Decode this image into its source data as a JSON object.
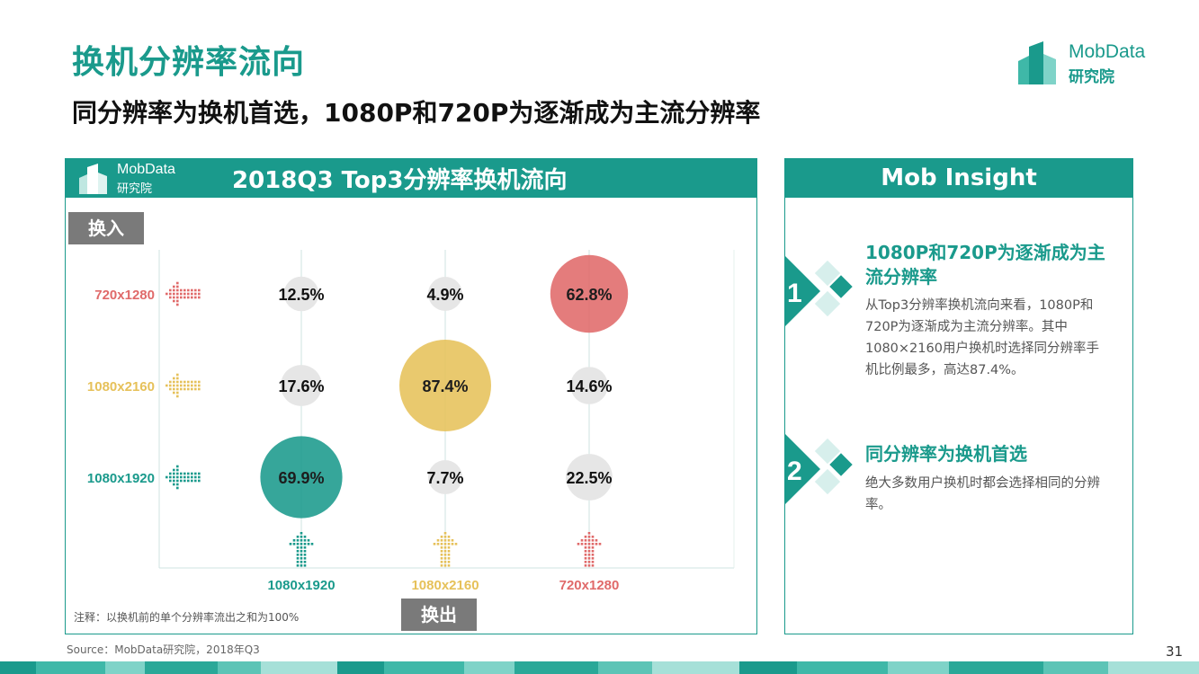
{
  "page": {
    "title": "换机分辨率流向",
    "subtitle": "同分辨率为换机首选，1080P和720P为逐渐成为主流分辨率",
    "page_number": "31",
    "source": "Source：MobData研究院，2018年Q3"
  },
  "brand": {
    "name": "MobData",
    "sub": "研究院",
    "color": "#1a9a8c"
  },
  "chart_panel": {
    "title": "2018Q3    Top3分辨率换机流向",
    "tag_in": "换入",
    "tag_out": "换出",
    "footnote": "注释：以换机前的单个分辨率流出之和为100%"
  },
  "chart_data": {
    "type": "bubble",
    "title": "2018Q3    Top3分辨率换机流向",
    "x_axis_label": "换出",
    "y_axis_label": "换入",
    "x_categories": [
      "1080x1920",
      "1080x2160",
      "720x1280"
    ],
    "y_categories": [
      "720x1280",
      "1080x2160",
      "1080x1920"
    ],
    "category_colors": {
      "1080x1920": "#1a9a8c",
      "1080x2160": "#e6c15a",
      "720x1280": "#e06a6a"
    },
    "cells": [
      {
        "out": "1080x1920",
        "in": "720x1280",
        "value": 12.5,
        "label": "12.5%"
      },
      {
        "out": "1080x2160",
        "in": "720x1280",
        "value": 4.9,
        "label": "4.9%"
      },
      {
        "out": "720x1280",
        "in": "720x1280",
        "value": 62.8,
        "label": "62.8%"
      },
      {
        "out": "1080x1920",
        "in": "1080x2160",
        "value": 17.6,
        "label": "17.6%"
      },
      {
        "out": "1080x2160",
        "in": "1080x2160",
        "value": 87.4,
        "label": "87.4%"
      },
      {
        "out": "720x1280",
        "in": "1080x2160",
        "value": 14.6,
        "label": "14.6%"
      },
      {
        "out": "1080x1920",
        "in": "1080x1920",
        "value": 69.9,
        "label": "69.9%"
      },
      {
        "out": "1080x2160",
        "in": "1080x1920",
        "value": 7.7,
        "label": "7.7%"
      },
      {
        "out": "720x1280",
        "in": "1080x1920",
        "value": 22.5,
        "label": "22.5%"
      }
    ]
  },
  "insight": {
    "header": "Mob Insight",
    "items": [
      {
        "number": "1",
        "title": "1080P和720P为逐渐成为主流分辨率",
        "body": "从Top3分辨率换机流向来看，1080P和720P为逐渐成为主流分辨率。其中1080×2160用户换机时选择同分辨率手机比例最多，高达87.4%。"
      },
      {
        "number": "2",
        "title": "同分辨率为换机首选",
        "body": "绝大多数用户换机时都会选择相同的分辨率。"
      }
    ]
  }
}
